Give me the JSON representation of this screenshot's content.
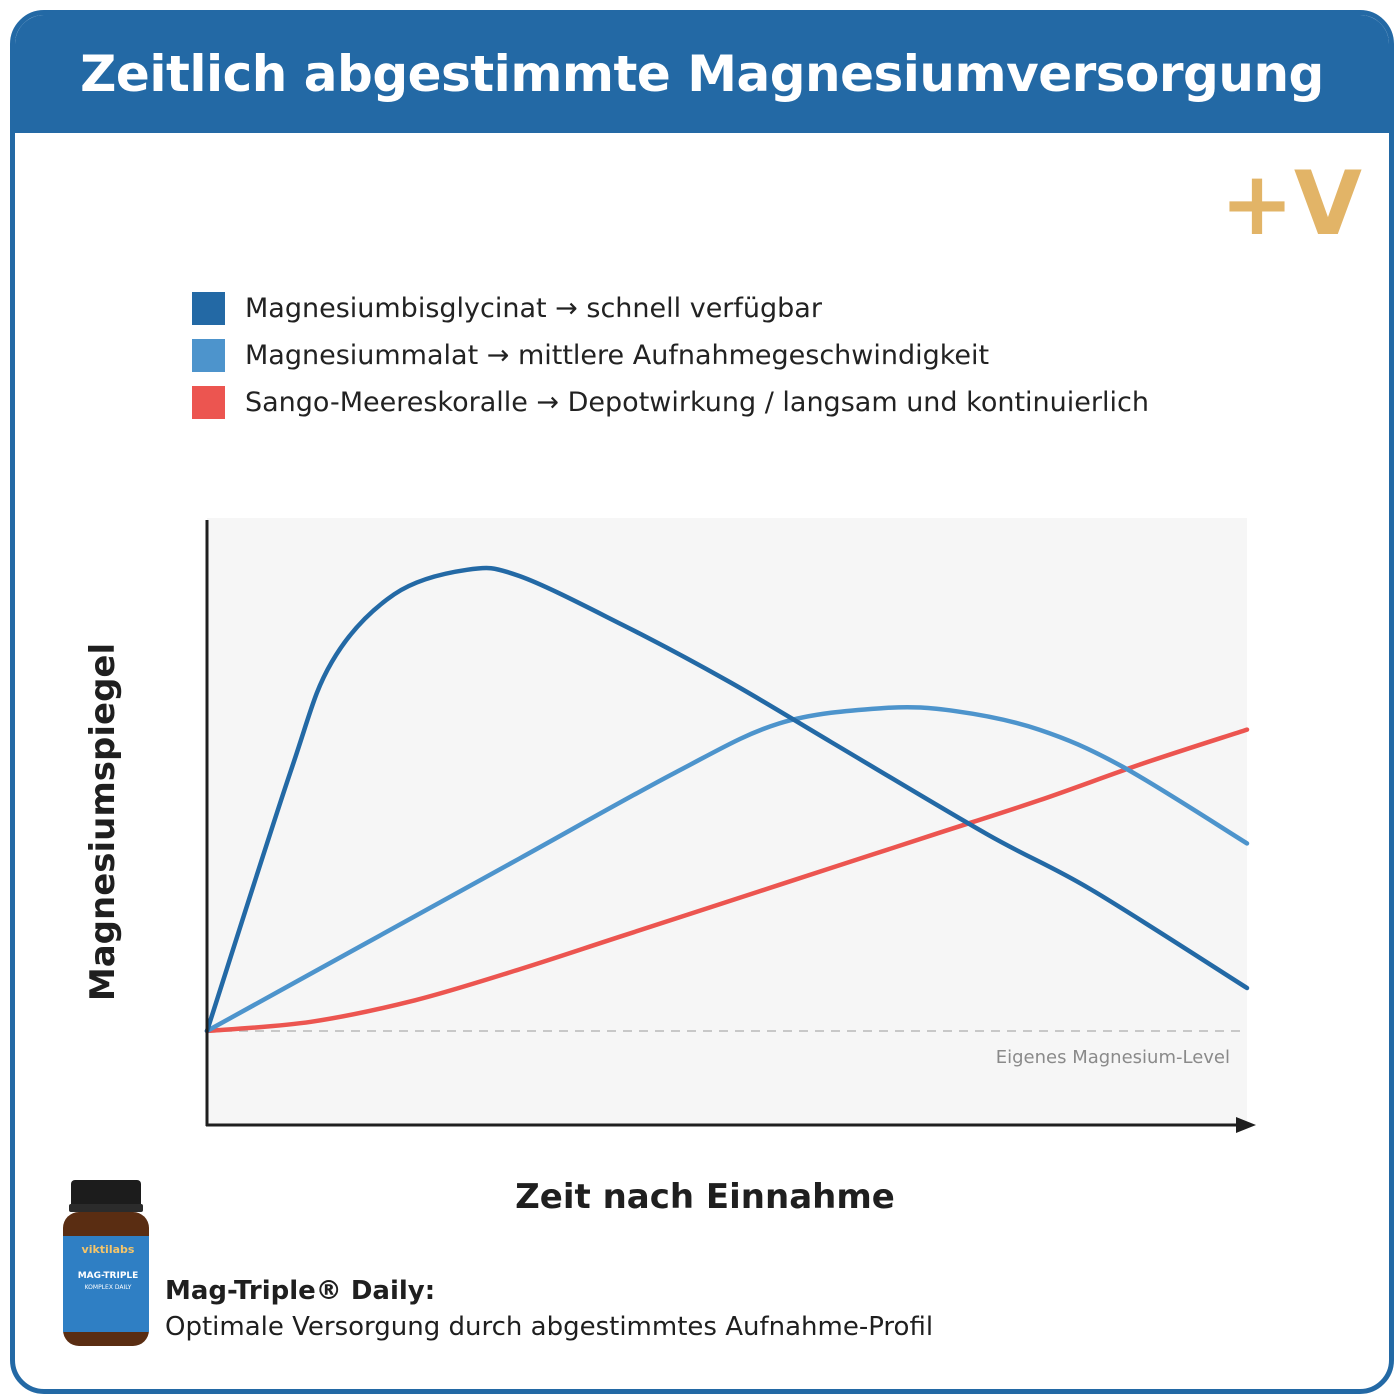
{
  "header": {
    "title": "Zeitlich abgestimmte Magnesiumversorgung"
  },
  "brand": {
    "logo_text": "+V",
    "color": "#e2b467"
  },
  "legend": {
    "items": [
      {
        "label": "Magnesiumbisglycinat → schnell verfügbar",
        "color": "#2369a5"
      },
      {
        "label": "Magnesiummalat → mittlere Aufnahmegeschwindigkeit",
        "color": "#4d94cc"
      },
      {
        "label": "Sango-Meereskoralle → Depotwirkung / langsam und kontinuierlich",
        "color": "#ec5550"
      }
    ]
  },
  "chart_data": {
    "type": "line",
    "xlabel": "Zeit nach Einnahme",
    "ylabel": "Magnesiumspiegel",
    "grid": false,
    "axis_ticks": false,
    "legend_position": "top-left",
    "baseline": {
      "label": "Eigenes Magnesium-Level",
      "y": 0,
      "style": "dashed"
    },
    "series": [
      {
        "name": "Magnesiumbisglycinat",
        "color": "#2369a5",
        "points": [
          [
            0,
            0
          ],
          [
            8,
            42
          ],
          [
            12,
            60
          ],
          [
            18,
            71
          ],
          [
            25,
            75
          ],
          [
            30,
            74
          ],
          [
            40,
            66
          ],
          [
            50,
            57
          ],
          [
            60,
            47
          ],
          [
            75,
            32
          ],
          [
            85,
            23
          ],
          [
            100,
            7
          ]
        ]
      },
      {
        "name": "Magnesiummalat",
        "color": "#4d94cc",
        "points": [
          [
            0,
            0
          ],
          [
            15,
            14
          ],
          [
            30,
            28
          ],
          [
            45,
            42
          ],
          [
            55,
            50
          ],
          [
            65,
            52.5
          ],
          [
            72,
            52
          ],
          [
            80,
            49
          ],
          [
            88,
            43
          ],
          [
            100,
            30.5
          ]
        ]
      },
      {
        "name": "Sango-Meereskoralle",
        "color": "#ec5550",
        "points": [
          [
            0,
            0
          ],
          [
            10,
            1.5
          ],
          [
            20,
            5
          ],
          [
            30,
            10
          ],
          [
            40,
            15.5
          ],
          [
            50,
            21
          ],
          [
            60,
            26.5
          ],
          [
            70,
            32
          ],
          [
            80,
            37.5
          ],
          [
            90,
            43.5
          ],
          [
            100,
            49
          ]
        ]
      }
    ]
  },
  "product": {
    "title": "Mag-Triple® Daily:",
    "subtitle": "Optimale Versorgung durch abgestimmtes Aufnahme-Profil",
    "brand_label": "viktilabs",
    "label_line1": "MAG-TRIPLE",
    "label_line2": "KOMPLEX DAILY"
  }
}
